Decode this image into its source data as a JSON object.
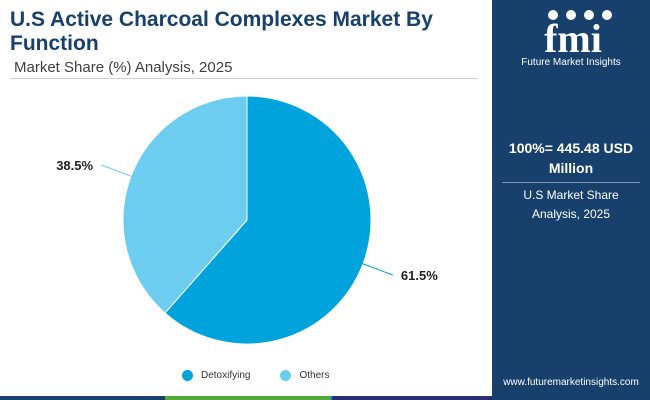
{
  "header": {
    "title": "U.S Active Charcoal Complexes Market By Function",
    "subtitle": "Market Share (%) Analysis, 2025"
  },
  "side_panel": {
    "logo_text": "fmi",
    "logo_tagline": "Future Market Insights",
    "total_value": "100%= 445.48 USD Million",
    "total_caption": "U.S Market Share Analysis, 2025",
    "website": "www.futuremarketinsights.com"
  },
  "colors": {
    "panel": "#17406d",
    "detoxifying": "#00a3db",
    "others": "#6dcdf1",
    "bottom_bar": [
      "#17406d",
      "#57a83b",
      "#1e90b8",
      "#2d2f76"
    ]
  },
  "chart_data": {
    "type": "pie",
    "title": "U.S Active Charcoal Complexes Market By Function",
    "subtitle": "Market Share (%) Analysis, 2025",
    "series": [
      {
        "name": "Detoxifying",
        "value": 61.5,
        "label": "61.5%",
        "color": "#00a3db"
      },
      {
        "name": "Others",
        "value": 38.5,
        "label": "38.5%",
        "color": "#6dcdf1"
      }
    ],
    "legend_position": "bottom"
  }
}
